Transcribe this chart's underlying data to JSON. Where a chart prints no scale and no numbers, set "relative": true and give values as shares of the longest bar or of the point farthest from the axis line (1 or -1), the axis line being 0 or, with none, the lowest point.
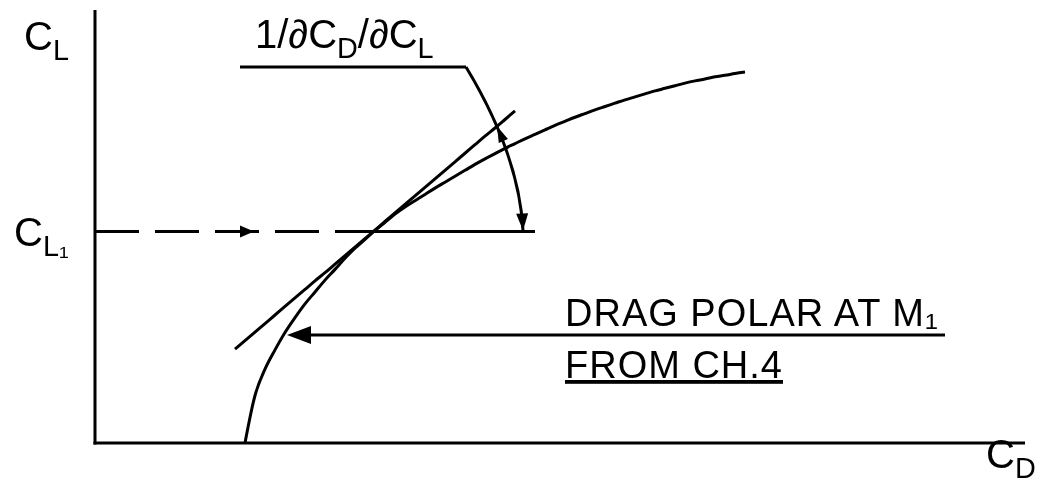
{
  "chart_data": {
    "type": "line",
    "relative": true,
    "line_style": "solid",
    "xlabel": "C$_{D}$",
    "ylabel": "C$_{L}$",
    "categories": [
      null,
      null,
      null,
      null,
      null,
      null,
      null,
      null,
      null,
      null,
      null,
      null,
      null,
      null,
      null,
      null,
      null,
      null,
      null,
      null,
      null,
      null,
      null,
      null,
      null,
      null,
      null,
      null,
      null,
      null,
      null,
      null,
      null,
      null,
      null,
      null,
      null,
      null,
      null,
      null,
      null,
      null,
      null,
      null,
      null,
      null,
      null,
      null,
      null,
      null,
      null,
      null,
      null,
      null,
      null,
      null,
      null,
      null,
      null,
      null,
      null,
      null,
      null,
      null,
      null,
      null,
      null,
      null,
      null,
      null,
      null,
      null,
      null,
      null,
      null,
      null,
      null,
      null,
      null,
      null,
      null,
      null,
      null,
      null,
      null,
      null,
      null,
      null,
      null,
      null,
      null,
      null,
      null,
      null
    ],
    "series": [
      {
        "color": "#000000",
        "values": [
          null,
          null,
          null,
          null,
          null,
          null,
          null,
          null,
          null,
          null,
          null,
          null,
          null,
          null,
          null,
          0,
          0.128,
          0.199,
          0.251,
          0.298,
          0.338,
          0.375,
          0.407,
          0.439,
          0.468,
          0.498,
          0.525,
          0.549,
          0.573,
          0.595,
          0.617,
          0.636,
          0.653,
          0.67,
          0.687,
          0.703,
          0.719,
          0.735,
          0.751,
          0.766,
          0.78,
          0.794,
          0.807,
          0.82,
          0.832,
          0.844,
          0.856,
          0.867,
          0.878,
          0.888,
          0.898,
          0.907,
          0.916,
          0.925,
          0.933,
          0.941,
          0.949,
          0.956,
          0.963,
          0.97,
          0.976,
          0.981,
          0.987,
          0.991,
          0.996,
          1,
          null,
          null,
          null,
          null,
          null,
          null,
          null,
          null,
          null,
          null,
          null,
          null,
          null,
          null,
          null,
          null,
          null,
          null,
          null,
          null,
          null,
          null,
          null,
          null,
          null,
          null,
          null,
          null
        ]
      },
      {
        "color": "#000000",
        "values": [
          null,
          null,
          null,
          null,
          null,
          null,
          null,
          null,
          null,
          null,
          null,
          null,
          null,
          null,
          0.253,
          0.276,
          0.299,
          0.322,
          0.345,
          0.368,
          0.391,
          0.414,
          0.437,
          0.459,
          0.482,
          0.505,
          0.528,
          0.551,
          0.574,
          0.597,
          0.62,
          0.643,
          0.666,
          0.689,
          0.712,
          0.735,
          0.758,
          0.781,
          0.804,
          0.827,
          0.849,
          0.872,
          0.895,
          null,
          null,
          null,
          null,
          null,
          null,
          null,
          null,
          null,
          null,
          null,
          null,
          null,
          null,
          null,
          null,
          null,
          null,
          null,
          null,
          null,
          null,
          null,
          null,
          null,
          null,
          null,
          null,
          null,
          null,
          null,
          null,
          null,
          null,
          null,
          null,
          null,
          null,
          null,
          null,
          null,
          null,
          null,
          null,
          null,
          null,
          null,
          null,
          null,
          null,
          null
        ]
      },
      {
        "color": "#000000",
        "line_style": "dashed",
        "values": [
          0.57,
          0.57,
          0.57,
          0.57,
          0.57,
          0.57,
          0.57,
          0.57,
          0.57,
          0.57,
          0.57,
          0.57,
          0.57,
          0.57,
          0.57,
          0.57,
          0.57,
          0.57,
          0.57,
          0.57,
          0.57,
          0.57,
          0.57,
          0.57,
          0.57,
          0.57,
          0.57,
          0.57,
          0.57,
          null,
          null,
          null,
          null,
          null,
          null,
          null,
          null,
          null,
          null,
          null,
          null,
          null,
          null,
          null,
          null,
          null,
          null,
          null,
          null,
          null,
          null,
          null,
          null,
          null,
          null,
          null,
          null,
          null,
          null,
          null,
          null,
          null,
          null,
          null,
          null,
          null,
          null,
          null,
          null,
          null,
          null,
          null,
          null,
          null,
          null,
          null,
          null,
          null,
          null,
          null,
          null,
          null,
          null,
          null,
          null,
          null,
          null,
          null,
          null,
          null,
          null,
          null,
          null,
          null
        ]
      },
      {
        "color": "#000000",
        "values": [
          null,
          null,
          null,
          null,
          null,
          null,
          null,
          null,
          null,
          null,
          null,
          null,
          null,
          null,
          null,
          null,
          null,
          null,
          null,
          null,
          null,
          null,
          null,
          null,
          null,
          null,
          null,
          null,
          0.57,
          0.57,
          0.57,
          0.57,
          0.57,
          0.57,
          0.57,
          0.57,
          0.57,
          0.57,
          0.57,
          0.57,
          0.57,
          0.57,
          0.57,
          0.57,
          0.57,
          null,
          null,
          null,
          null,
          null,
          null,
          null,
          null,
          null,
          null,
          null,
          null,
          null,
          null,
          null,
          null,
          null,
          null,
          null,
          null,
          null,
          null,
          null,
          null,
          null,
          null,
          null,
          null,
          null,
          null,
          null,
          null,
          null,
          null,
          null,
          null,
          null,
          null,
          null,
          null,
          null,
          null,
          null,
          null,
          null,
          null,
          null,
          null,
          null
        ]
      }
    ],
    "annotations": [
      "C$_{L₁}$",
      "1/∂C$_{D}$/∂C$_{L}$",
      "DRAG POLAR AT M₁",
      "FROM CH.4"
    ]
  }
}
